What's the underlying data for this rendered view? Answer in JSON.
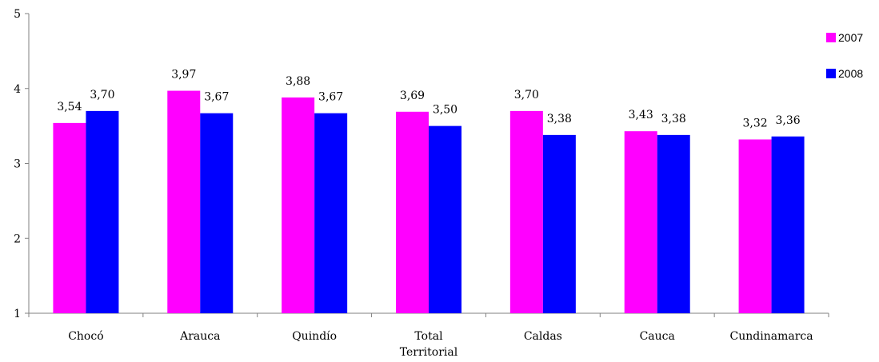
{
  "chart_data": {
    "type": "bar",
    "categories": [
      "Chocó",
      "Arauca",
      "Quindío",
      "Total Territorial",
      "Caldas",
      "Cauca",
      "Cundinamarca"
    ],
    "series": [
      {
        "name": "2007",
        "color": "#ff00ff",
        "values": [
          3.54,
          3.97,
          3.88,
          3.69,
          3.7,
          3.43,
          3.32
        ],
        "labels": [
          "3,54",
          "3,97",
          "3,88",
          "3,69",
          "3,70",
          "3,43",
          "3,32"
        ]
      },
      {
        "name": "2008",
        "color": "#0000ff",
        "values": [
          3.7,
          3.67,
          3.67,
          3.5,
          3.38,
          3.38,
          3.36
        ],
        "labels": [
          "3,70",
          "3,67",
          "3,67",
          "3,50",
          "3,38",
          "3,38",
          "3,36"
        ]
      }
    ],
    "yticks": [
      "1",
      "2",
      "3",
      "4",
      "5"
    ],
    "ylim": [
      1,
      5
    ],
    "grid": false,
    "legend_position": "right"
  }
}
